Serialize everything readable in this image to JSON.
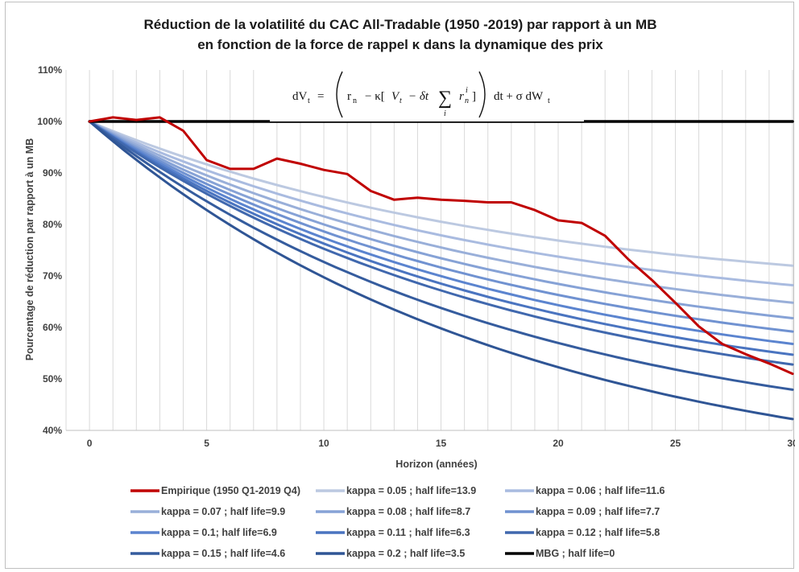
{
  "chart_data": {
    "type": "line",
    "title": "Réduction de la volatilité du CAC All-Tradable (1950 -2019)  par rapport à un MB",
    "subtitle": "en fonction de la force de rappel κ dans la dynamique des prix",
    "xlabel": "Horizon (années)",
    "ylabel": "Pourcentage de réduction par rapport à un MB",
    "xlim": [
      -1,
      30
    ],
    "ylim": [
      0.4,
      1.1
    ],
    "xticks": [
      0,
      5,
      10,
      15,
      20,
      25,
      30
    ],
    "xtick_labels": [
      "0",
      "5",
      "10",
      "15",
      "20",
      "25",
      "30"
    ],
    "yticks": [
      0.4,
      0.5,
      0.6,
      0.7,
      0.8,
      0.9,
      1.0,
      1.1
    ],
    "ytick_labels": [
      "40%",
      "50%",
      "60%",
      "70%",
      "80%",
      "90%",
      "100%",
      "110%"
    ],
    "grid": {
      "vertical": true,
      "horizontal": false
    },
    "legend_position": "bottom",
    "formula": {
      "lhs": "dV",
      "lhs_sub": "t",
      "eq": "=",
      "r": "r",
      "r_sub": "n",
      "minus_kappa": "− κ[",
      "V": "V",
      "V_sub": "t",
      "minus_dt": "− δt",
      "sum": "∑",
      "sum_sub": "i",
      "rn": "r",
      "rn_sub": "n",
      "rn_sup": "i",
      "close": "]",
      "dt_term": "dt + σ dW",
      "dw_sub": "t"
    },
    "series": [
      {
        "name": "Empirique (1950 Q1-2019 Q4)",
        "color": "#c00000",
        "width": 3,
        "x": [
          0,
          1,
          2,
          3,
          4,
          5,
          6,
          7,
          8,
          9,
          10,
          11,
          12,
          13,
          14,
          15,
          16,
          17,
          18,
          19,
          20,
          21,
          22,
          23,
          24,
          25,
          26,
          27,
          28,
          29,
          30
        ],
        "y": [
          1.0,
          1.008,
          1.003,
          1.008,
          0.982,
          0.925,
          0.908,
          0.908,
          0.928,
          0.918,
          0.906,
          0.898,
          0.865,
          0.848,
          0.852,
          0.848,
          0.846,
          0.843,
          0.843,
          0.828,
          0.808,
          0.803,
          0.778,
          0.732,
          0.692,
          0.648,
          0.602,
          0.568,
          0.548,
          0.53,
          0.51
        ]
      },
      {
        "name": "kappa = 0.05 ; half life=13.9",
        "color": "#bcc9e1",
        "width": 3,
        "end": 0.72
      },
      {
        "name": "kappa = 0.06 ; half life=11.6",
        "color": "#a9bbe0",
        "width": 3,
        "end": 0.682
      },
      {
        "name": "kappa = 0.07 ; half life=9.9",
        "color": "#99afd9",
        "width": 3,
        "end": 0.648
      },
      {
        "name": "kappa = 0.08 ; half life=8.7",
        "color": "#86a2d6",
        "width": 3,
        "end": 0.618
      },
      {
        "name": "kappa = 0.09 ; half life=7.7",
        "color": "#7092d1",
        "width": 3,
        "end": 0.592
      },
      {
        "name": "kappa = 0.1; half life=6.9",
        "color": "#5b84cf",
        "width": 3,
        "end": 0.568
      },
      {
        "name": "kappa = 0.11 ; half life=6.3",
        "color": "#4a74c0",
        "width": 3,
        "end": 0.547
      },
      {
        "name": "kappa = 0.12 ; half life=5.8",
        "color": "#4068ae",
        "width": 3,
        "end": 0.528
      },
      {
        "name": "kappa = 0.15 ; half life=4.6",
        "color": "#355c9e",
        "width": 3,
        "end": 0.479
      },
      {
        "name": "kappa = 0.2 ; half life=3.5",
        "color": "#2f5595",
        "width": 3,
        "end": 0.422
      },
      {
        "name": "MBG ; half life=0",
        "color": "#000000",
        "width": 3.5,
        "end": 1.0
      }
    ]
  }
}
